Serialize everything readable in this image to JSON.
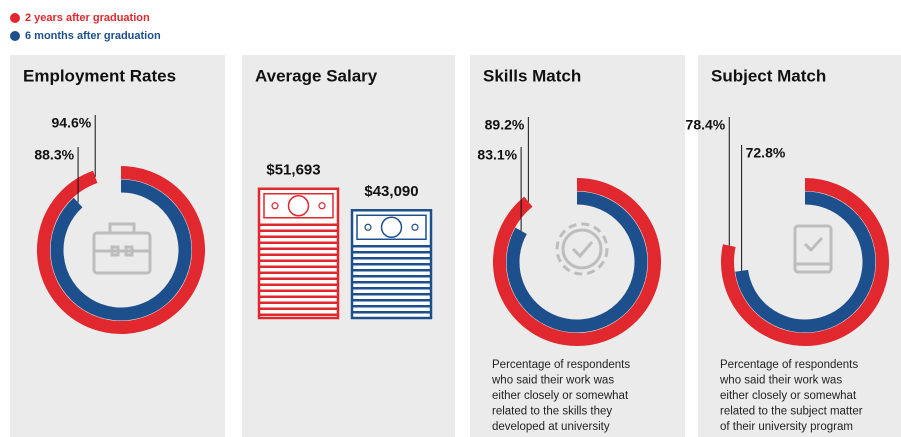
{
  "legend": [
    {
      "name": "2 years after graduation",
      "color": "#e0282e"
    },
    {
      "name": "6 months after graduation",
      "color": "#1d4f8c"
    }
  ],
  "chart_data": [
    {
      "type": "donut",
      "title": "Employment Rates",
      "values": [
        94.6,
        88.3
      ],
      "value_labels": [
        "94.6%",
        "88.3%"
      ]
    },
    {
      "type": "bar",
      "title": "Average Salary",
      "values": [
        51693,
        43090
      ],
      "value_labels": [
        "$51,693",
        "$43,090"
      ]
    },
    {
      "type": "donut",
      "title": "Skills Match",
      "values": [
        89.2,
        83.1
      ],
      "value_labels": [
        "89.2%",
        "83.1%"
      ],
      "note": [
        "Percentage of respondents",
        "who said their work was",
        "either closely or somewhat",
        "related to the skills they",
        "developed at university"
      ]
    },
    {
      "type": "donut",
      "title": "Subject Match",
      "values": [
        78.4,
        72.8
      ],
      "value_labels": [
        "78.4%",
        "72.8%"
      ],
      "note": [
        "Percentage of respondents",
        "who said their work was",
        "either closely or somewhat",
        "related to the subject matter",
        "of their university program"
      ]
    }
  ]
}
